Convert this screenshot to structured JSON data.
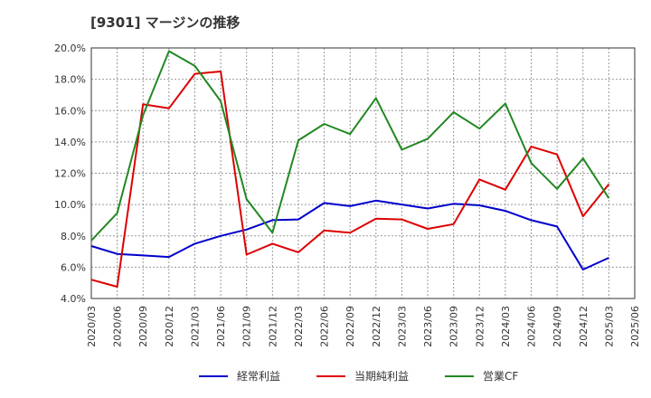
{
  "chart_data": {
    "type": "line",
    "title": "[9301]  マージンの推移",
    "xlabel": "",
    "ylabel": "",
    "x": [
      "2020/03",
      "2020/06",
      "2020/09",
      "2020/12",
      "2021/03",
      "2021/06",
      "2021/09",
      "2021/12",
      "2022/03",
      "2022/06",
      "2022/09",
      "2022/12",
      "2023/03",
      "2023/06",
      "2023/09",
      "2023/12",
      "2024/03",
      "2024/06",
      "2024/09",
      "2024/12",
      "2025/03",
      "2025/06"
    ],
    "ylim": [
      4.0,
      20.0
    ],
    "yticks": [
      "4.0%",
      "6.0%",
      "8.0%",
      "10.0%",
      "12.0%",
      "14.0%",
      "16.0%",
      "18.0%",
      "20.0%"
    ],
    "grid": true,
    "legend_position": "bottom",
    "series": [
      {
        "name": "経常利益",
        "color": "#0000cc",
        "values": [
          7.35,
          6.85,
          6.75,
          6.65,
          7.5,
          8.0,
          8.4,
          9.0,
          9.05,
          10.1,
          9.9,
          10.25,
          10.0,
          9.75,
          10.05,
          9.95,
          9.6,
          9.0,
          8.6,
          5.85,
          6.6,
          null
        ]
      },
      {
        "name": "当期純利益",
        "color": "#dd0000",
        "values": [
          5.2,
          4.75,
          16.4,
          16.15,
          18.35,
          18.5,
          6.8,
          7.5,
          6.95,
          8.35,
          8.2,
          9.1,
          9.05,
          8.45,
          8.75,
          11.6,
          10.95,
          13.7,
          13.2,
          9.25,
          11.3,
          null
        ]
      },
      {
        "name": "営業CF",
        "color": "#228822",
        "values": [
          7.7,
          9.45,
          15.7,
          19.8,
          18.85,
          16.6,
          10.35,
          8.2,
          14.1,
          15.15,
          14.5,
          16.8,
          13.5,
          14.2,
          15.9,
          14.85,
          16.45,
          12.65,
          11.0,
          12.95,
          10.4,
          null
        ]
      }
    ]
  }
}
